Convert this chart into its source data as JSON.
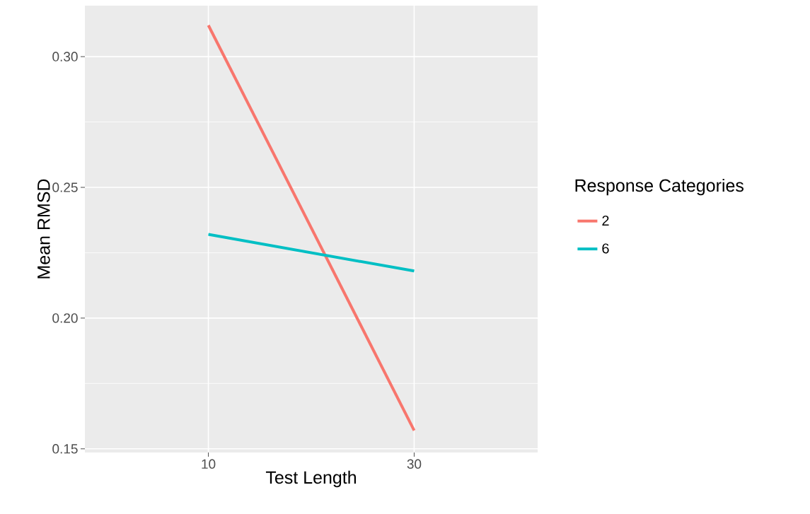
{
  "chart_data": {
    "type": "line",
    "xlabel": "Test Length",
    "ylabel": "Mean RMSD",
    "legend_title": "Response Categories",
    "categories": [
      "10",
      "30"
    ],
    "series": [
      {
        "name": "2",
        "color": "#f8766d",
        "values": [
          0.312,
          0.157
        ]
      },
      {
        "name": "6",
        "color": "#00bfc4",
        "values": [
          0.232,
          0.218
        ]
      }
    ],
    "ylim": [
      0.1486,
      0.3195
    ],
    "yticks": [
      {
        "value": 0.15,
        "label": "0.15"
      },
      {
        "value": 0.2,
        "label": "0.20"
      },
      {
        "value": 0.25,
        "label": "0.25"
      },
      {
        "value": 0.3,
        "label": "0.30"
      }
    ],
    "grid": true,
    "legend": "right"
  }
}
